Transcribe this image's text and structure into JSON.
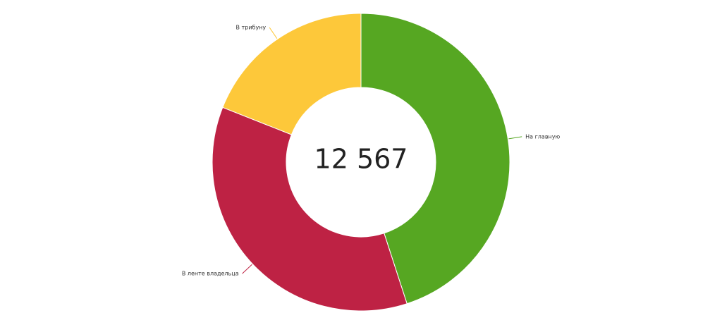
{
  "chart_data": {
    "type": "donut",
    "center_text": "12 567",
    "categories": [
      "На главную",
      "В ленте владельца",
      "В трибуну"
    ],
    "values": [
      45,
      36,
      19
    ],
    "colors": [
      "#56a722",
      "#be2244",
      "#fdc83a"
    ]
  }
}
